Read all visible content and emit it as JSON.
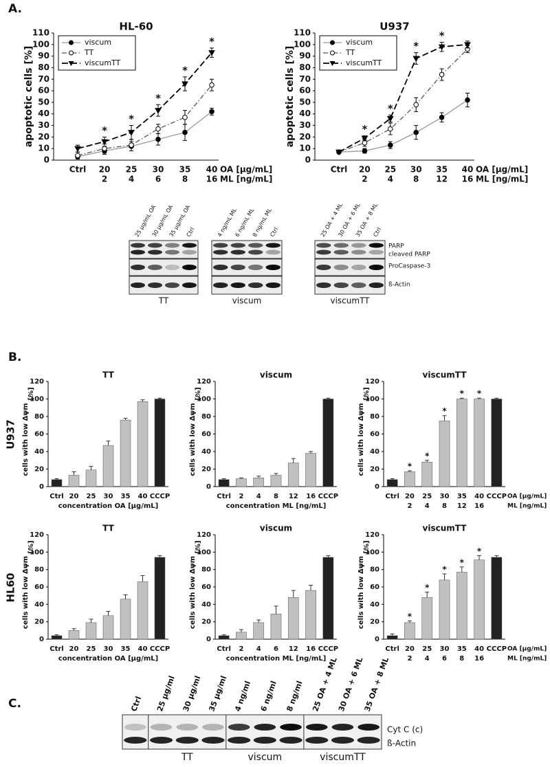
{
  "panel_labels": [
    "A.",
    "B.",
    "C."
  ],
  "row_labels": [
    "U937",
    "HL60"
  ],
  "chart_data": [
    {
      "type": "line",
      "title": "HL-60",
      "ylabel": "apoptotic cells [%]",
      "categories": [
        "Ctrl",
        "20",
        "25",
        "30",
        "35",
        "40"
      ],
      "categories2": [
        null,
        "2",
        "4",
        "6",
        "8",
        "16"
      ],
      "x_rows": [
        "OA [µg/mL]",
        "ML [ng/mL]"
      ],
      "ylim": [
        0,
        110
      ],
      "yticks": [
        0,
        10,
        20,
        30,
        40,
        50,
        60,
        70,
        80,
        90,
        100,
        110
      ],
      "legend": "upper left",
      "series": [
        {
          "name": "viscum",
          "color": "#999999",
          "marker": "circle-filled",
          "dash": "solid",
          "values": [
            3,
            8,
            12,
            18,
            24,
            42
          ],
          "errors": [
            2,
            3,
            4,
            5,
            7,
            3
          ]
        },
        {
          "name": "TT",
          "color": "#555555",
          "marker": "circle-open",
          "dash": "dashdot",
          "values": [
            4,
            10,
            13,
            27,
            37,
            65
          ],
          "errors": [
            3,
            4,
            5,
            4,
            6,
            5
          ]
        },
        {
          "name": "viscumTT",
          "color": "#000000",
          "marker": "triangle-down",
          "dash": "dashed",
          "values": [
            10,
            16,
            24,
            43,
            66,
            93
          ],
          "errors": [
            3,
            4,
            6,
            5,
            6,
            4
          ],
          "significance": [
            null,
            "*",
            "*",
            "*",
            "*",
            "*"
          ]
        }
      ]
    },
    {
      "type": "line",
      "title": "U937",
      "ylabel": "apoptotic cells [%]",
      "categories": [
        "Ctrl",
        "20",
        "25",
        "30",
        "35",
        "40"
      ],
      "categories2": [
        null,
        "2",
        "4",
        "8",
        "12",
        "16"
      ],
      "x_rows": [
        "OA [µg/mL]",
        "ML [ng/mL]"
      ],
      "ylim": [
        0,
        110
      ],
      "yticks": [
        0,
        10,
        20,
        30,
        40,
        50,
        60,
        70,
        80,
        90,
        100,
        110
      ],
      "legend": "upper left",
      "series": [
        {
          "name": "viscum",
          "color": "#999999",
          "marker": "circle-filled",
          "dash": "solid",
          "values": [
            7,
            8,
            13,
            24,
            37,
            52
          ],
          "errors": [
            1,
            2,
            3,
            6,
            4,
            6
          ]
        },
        {
          "name": "TT",
          "color": "#555555",
          "marker": "circle-open",
          "dash": "dashdot",
          "values": [
            7,
            15,
            27,
            48,
            74,
            96
          ],
          "errors": [
            1,
            3,
            5,
            6,
            5,
            3
          ]
        },
        {
          "name": "viscumTT",
          "color": "#000000",
          "marker": "triangle-down",
          "dash": "dashed",
          "values": [
            7,
            19,
            36,
            88,
            98,
            100
          ],
          "errors": [
            1,
            2,
            3,
            5,
            4,
            3
          ],
          "significance": [
            null,
            "*",
            "*",
            "*",
            "*",
            null
          ]
        }
      ]
    },
    {
      "type": "bar",
      "title": "TT",
      "ylabel": "cells with low Δψm",
      "y_unit": "[%]",
      "xlabel": "concentration OA [µg/mL]",
      "categories": [
        "Ctrl",
        "20",
        "25",
        "30",
        "35",
        "40",
        "CCCP"
      ],
      "ylim": [
        0,
        120
      ],
      "yticks": [
        0,
        20,
        40,
        60,
        80,
        100,
        120
      ],
      "values": [
        8,
        13,
        19,
        47,
        76,
        97,
        100
      ],
      "errors": [
        1,
        4,
        4,
        5,
        2,
        2,
        1
      ],
      "colors": [
        "#222222",
        "#c0c0c0",
        "#c0c0c0",
        "#c0c0c0",
        "#c0c0c0",
        "#c0c0c0",
        "#222222"
      ]
    },
    {
      "type": "bar",
      "title": "viscum",
      "ylabel": "cells with low Δψm",
      "y_unit": "[%]",
      "xlabel": "concentration ML [ng/mL]",
      "categories": [
        "Ctrl",
        "2",
        "4",
        "8",
        "12",
        "16",
        "CCCP"
      ],
      "ylim": [
        0,
        120
      ],
      "yticks": [
        0,
        20,
        40,
        60,
        80,
        100,
        120
      ],
      "values": [
        8,
        9,
        10,
        13,
        27,
        38,
        100
      ],
      "errors": [
        1,
        1,
        2,
        2,
        5,
        2,
        1
      ],
      "colors": [
        "#222222",
        "#c0c0c0",
        "#c0c0c0",
        "#c0c0c0",
        "#c0c0c0",
        "#c0c0c0",
        "#222222"
      ]
    },
    {
      "type": "bar",
      "title": "viscumTT",
      "ylabel": "cells with low Δψm",
      "y_unit": "[%]",
      "categories": [
        "Ctrl",
        "20",
        "25",
        "30",
        "35",
        "40",
        "CCCP"
      ],
      "categories2": [
        null,
        "2",
        "4",
        "8",
        "12",
        "16",
        null
      ],
      "x_rows": [
        "OA [µg/mL]",
        "ML [ng/mL]"
      ],
      "ylim": [
        0,
        120
      ],
      "yticks": [
        0,
        20,
        40,
        60,
        80,
        100,
        120
      ],
      "values": [
        8,
        17,
        28,
        75,
        100,
        100,
        100
      ],
      "errors": [
        1,
        1,
        2,
        6,
        1,
        1,
        1
      ],
      "significance": [
        null,
        "*",
        "*",
        "*",
        "*",
        "*",
        null
      ],
      "colors": [
        "#222222",
        "#c0c0c0",
        "#c0c0c0",
        "#c0c0c0",
        "#c0c0c0",
        "#c0c0c0",
        "#222222"
      ]
    },
    {
      "type": "bar",
      "title": "TT",
      "ylabel": "cells with low Δψm",
      "y_unit": "[%]",
      "xlabel": "concentration OA [µg/mL]",
      "categories": [
        "Ctrl",
        "20",
        "25",
        "30",
        "35",
        "40",
        "CCCP"
      ],
      "ylim": [
        0,
        120
      ],
      "yticks": [
        0,
        20,
        40,
        60,
        80,
        100,
        120
      ],
      "values": [
        4,
        10,
        19,
        27,
        46,
        66,
        94
      ],
      "errors": [
        1,
        2,
        4,
        5,
        5,
        7,
        2
      ],
      "colors": [
        "#222222",
        "#c0c0c0",
        "#c0c0c0",
        "#c0c0c0",
        "#c0c0c0",
        "#c0c0c0",
        "#222222"
      ]
    },
    {
      "type": "bar",
      "title": "viscum",
      "ylabel": "cells with low Δψm",
      "y_unit": "[%]",
      "xlabel": "concentration ML [ng/mL]",
      "categories": [
        "Ctrl",
        "2",
        "4",
        "6",
        "12",
        "16",
        "CCCP"
      ],
      "ylim": [
        0,
        120
      ],
      "yticks": [
        0,
        20,
        40,
        60,
        80,
        100,
        120
      ],
      "values": [
        4,
        8,
        19,
        29,
        48,
        56,
        94
      ],
      "errors": [
        1,
        3,
        3,
        9,
        8,
        6,
        2
      ],
      "colors": [
        "#222222",
        "#c0c0c0",
        "#c0c0c0",
        "#c0c0c0",
        "#c0c0c0",
        "#c0c0c0",
        "#222222"
      ]
    },
    {
      "type": "bar",
      "title": "viscumTT",
      "ylabel": "cells with low Δψm",
      "y_unit": "[%]",
      "categories": [
        "Ctrl",
        "20",
        "25",
        "30",
        "35",
        "40",
        "CCCP"
      ],
      "categories2": [
        null,
        "2",
        "4",
        "6",
        "8",
        "16",
        null
      ],
      "x_rows": [
        "OA [µg/mL]",
        "ML [ng/mL]"
      ],
      "ylim": [
        0,
        120
      ],
      "yticks": [
        0,
        20,
        40,
        60,
        80,
        100,
        120
      ],
      "values": [
        4,
        19,
        48,
        68,
        77,
        91,
        94
      ],
      "errors": [
        2,
        2,
        6,
        7,
        6,
        5,
        2
      ],
      "significance": [
        null,
        "*",
        "*",
        "*",
        "*",
        "*",
        null
      ],
      "colors": [
        "#222222",
        "#c0c0c0",
        "#c0c0c0",
        "#c0c0c0",
        "#c0c0c0",
        "#c0c0c0",
        "#222222"
      ]
    }
  ],
  "blot_a": {
    "groups": [
      {
        "name": "TT",
        "lanes": [
          "25 µg/mL OA",
          "30 µg/mL OA",
          "35 µg/mL OA",
          "Ctrl"
        ]
      },
      {
        "name": "viscum",
        "lanes": [
          "4 ng/mL ML",
          "6 ng/mL ML",
          "8 ng/mL ML",
          "Ctrl"
        ]
      },
      {
        "name": "viscumTT",
        "lanes": [
          "25 OA + 4 ML",
          "30 OA + 6 ML",
          "35 OA + 8 ML",
          "Ctrl"
        ]
      }
    ],
    "rows": [
      "PARP",
      "cleaved PARP",
      "ProCaspase-3",
      "ß-Actin"
    ]
  },
  "blot_c": {
    "lanes": [
      "Ctrl",
      "25 µg/ml",
      "30 µg/ml",
      "35 µg/ml",
      "4 ng/ml",
      "6 ng/ml",
      "8 ng/ml",
      "25 OA + 4 ML",
      "30 OA + 6 ML",
      "35 OA + 8 ML"
    ],
    "groups": [
      "TT",
      "viscum",
      "viscumTT"
    ],
    "rows": [
      "Cyt C (c)",
      "ß-Actin"
    ]
  }
}
